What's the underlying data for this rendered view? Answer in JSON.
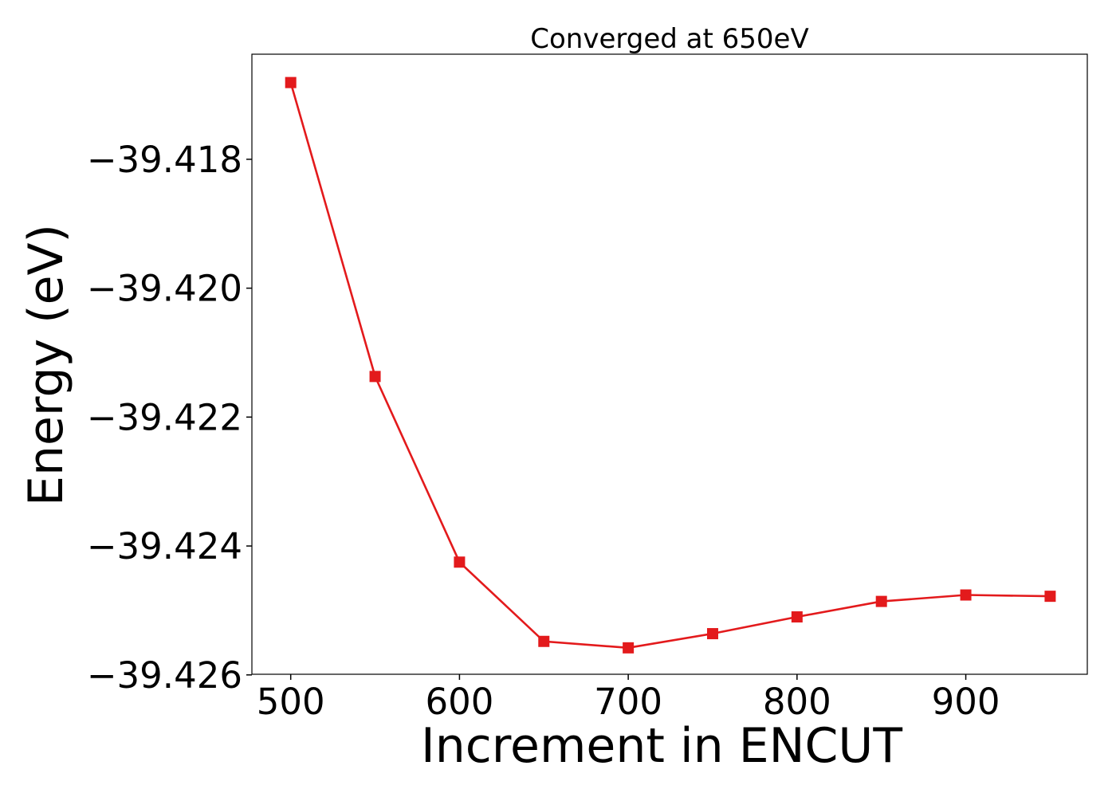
{
  "chart_data": {
    "type": "line",
    "title": "Converged at 650eV",
    "xlabel": "Increment in ENCUT",
    "ylabel": "Energy (eV)",
    "xlim": [
      477,
      972
    ],
    "ylim": [
      -39.42599,
      -39.41637
    ],
    "xticks": [
      500,
      600,
      700,
      800,
      900
    ],
    "xtick_labels": [
      "500",
      "600",
      "700",
      "800",
      "900"
    ],
    "yticks": [
      -39.418,
      -39.42,
      -39.422,
      -39.424,
      -39.426
    ],
    "ytick_labels": [
      "−39.418",
      "−39.420",
      "−39.422",
      "−39.424",
      "−39.426"
    ],
    "grid": false,
    "legend": "none",
    "series": [
      {
        "color": "#e31a1c",
        "marker": "square",
        "x": [
          500,
          550,
          600,
          650,
          700,
          750,
          800,
          850,
          900,
          950
        ],
        "y": [
          -39.41681,
          -39.42137,
          -39.42425,
          -39.42548,
          -39.42558,
          -39.42536,
          -39.4251,
          -39.42486,
          -39.42476,
          -39.42478
        ]
      }
    ]
  }
}
